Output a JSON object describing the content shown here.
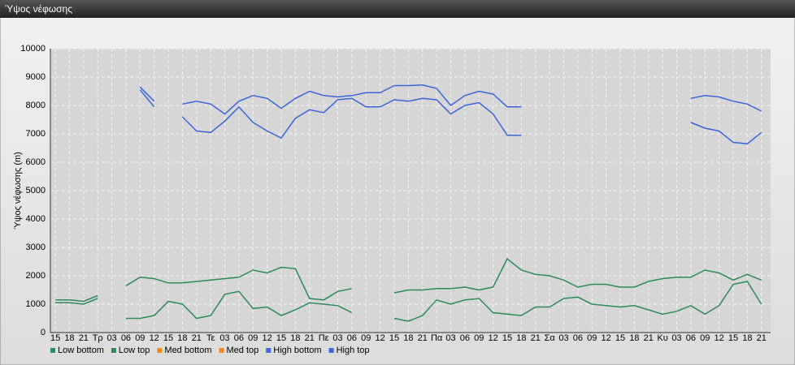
{
  "chart_data": {
    "type": "line",
    "title": "Ύψος νέφωσης",
    "ylabel": "Ύψος νέφωσης (m)",
    "categories": [
      "15",
      "18",
      "21",
      "Τρ",
      "03",
      "06",
      "09",
      "12",
      "15",
      "18",
      "21",
      "Τε",
      "03",
      "06",
      "09",
      "12",
      "15",
      "18",
      "21",
      "Πε",
      "03",
      "06",
      "09",
      "12",
      "15",
      "18",
      "21",
      "Πα",
      "03",
      "06",
      "09",
      "12",
      "15",
      "18",
      "21",
      "Σα",
      "03",
      "06",
      "09",
      "12",
      "15",
      "18",
      "21",
      "Κυ",
      "03",
      "06",
      "09",
      "12",
      "15",
      "18",
      "21"
    ],
    "ylim": [
      0,
      10000
    ],
    "yticks": [
      0,
      1000,
      2000,
      3000,
      4000,
      5000,
      6000,
      7000,
      8000,
      9000,
      10000
    ],
    "grid": true,
    "series": [
      {
        "name": "Low bottom",
        "color": "#2e8b57",
        "values": [
          1050,
          1050,
          1000,
          1200,
          null,
          500,
          500,
          600,
          1100,
          1000,
          500,
          600,
          1350,
          1450,
          850,
          900,
          600,
          800,
          1050,
          1000,
          950,
          700,
          null,
          null,
          500,
          400,
          600,
          1150,
          1000,
          1150,
          1200,
          700,
          650,
          600,
          900,
          900,
          1200,
          1250,
          1000,
          950,
          900,
          950,
          800,
          650,
          750,
          950,
          650,
          950,
          1700,
          1800,
          1000
        ]
      },
      {
        "name": "Low top",
        "color": "#2e8b57",
        "values": [
          1150,
          1150,
          1100,
          1300,
          null,
          1650,
          1950,
          1900,
          1750,
          1750,
          1800,
          1850,
          1900,
          1950,
          2200,
          2100,
          2300,
          2250,
          1200,
          1150,
          1450,
          1550,
          null,
          null,
          1400,
          1500,
          1500,
          1550,
          1550,
          1600,
          1500,
          1600,
          2600,
          2200,
          2050,
          2000,
          1850,
          1600,
          1700,
          1700,
          1600,
          1600,
          1800,
          1900,
          1950,
          1950,
          2200,
          2100,
          1850,
          2050,
          1850
        ]
      },
      {
        "name": "Med bottom",
        "color": "#f08a24",
        "values": [
          null,
          null,
          null,
          null,
          null,
          null,
          null,
          null,
          null,
          null,
          null,
          null,
          null,
          null,
          null,
          null,
          null,
          null,
          null,
          null,
          null,
          null,
          null,
          null,
          null,
          null,
          null,
          null,
          null,
          null,
          null,
          null,
          null,
          null,
          null,
          null,
          null,
          null,
          null,
          null,
          null,
          null,
          null,
          null,
          null,
          null,
          null,
          null,
          null,
          null,
          null
        ]
      },
      {
        "name": "Med top",
        "color": "#f08a24",
        "values": [
          null,
          null,
          null,
          null,
          null,
          null,
          null,
          null,
          null,
          null,
          null,
          null,
          null,
          null,
          null,
          null,
          null,
          null,
          null,
          null,
          null,
          null,
          null,
          null,
          null,
          null,
          null,
          null,
          null,
          null,
          null,
          null,
          null,
          null,
          null,
          null,
          null,
          null,
          null,
          null,
          null,
          null,
          null,
          null,
          null,
          null,
          null,
          null,
          null,
          null,
          null
        ]
      },
      {
        "name": "High bottom",
        "color": "#3a66d8",
        "values": [
          null,
          null,
          null,
          null,
          null,
          null,
          8550,
          7950,
          null,
          7600,
          7100,
          7050,
          7450,
          7950,
          7400,
          7100,
          6850,
          7550,
          7850,
          7750,
          8200,
          8250,
          7950,
          7950,
          8200,
          8150,
          8250,
          8200,
          7700,
          8000,
          8100,
          7700,
          6950,
          6950,
          null,
          null,
          null,
          null,
          null,
          null,
          null,
          null,
          null,
          null,
          null,
          7400,
          7200,
          7100,
          6700,
          6650,
          7050
        ]
      },
      {
        "name": "High top",
        "color": "#3a66d8",
        "values": [
          null,
          null,
          null,
          null,
          null,
          null,
          8650,
          8150,
          null,
          8050,
          8150,
          8050,
          7700,
          8150,
          8350,
          8250,
          7900,
          8250,
          8500,
          8350,
          8300,
          8350,
          8450,
          8450,
          8700,
          8700,
          8720,
          8600,
          8000,
          8350,
          8500,
          8400,
          7950,
          7950,
          null,
          null,
          null,
          null,
          null,
          null,
          null,
          null,
          null,
          null,
          null,
          8250,
          8350,
          8300,
          8150,
          8050,
          7800
        ]
      }
    ]
  }
}
